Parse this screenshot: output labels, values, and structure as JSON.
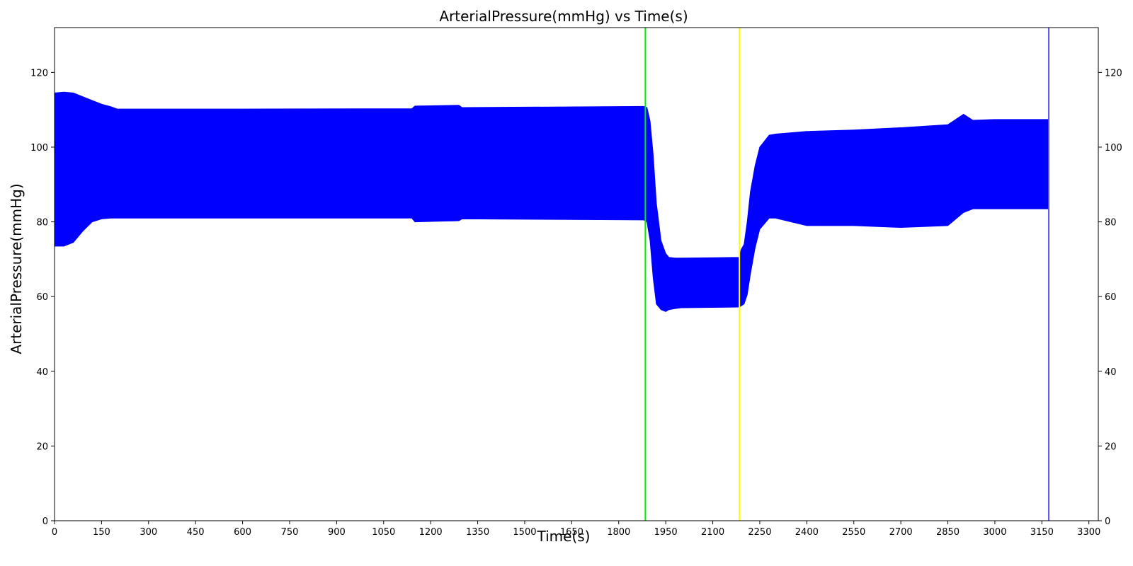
{
  "chart_data": {
    "type": "area",
    "title": "ArterialPressure(mmHg) vs Time(s)",
    "xlabel": "Time(s)",
    "ylabel": "ArterialPressure(mmHg)",
    "xlim": [
      0,
      3330
    ],
    "ylim": [
      0,
      132
    ],
    "x_ticks": [
      0,
      150,
      300,
      450,
      600,
      750,
      900,
      1050,
      1200,
      1350,
      1500,
      1650,
      1800,
      1950,
      2100,
      2250,
      2400,
      2550,
      2700,
      2850,
      3000,
      3150,
      3300
    ],
    "y_ticks": [
      0,
      20,
      40,
      60,
      80,
      100,
      120
    ],
    "y_ticks_right": true,
    "grid": false,
    "series": [
      {
        "color": "#0000ff",
        "band": {
          "x": [
            0,
            30,
            60,
            90,
            120,
            150,
            180,
            200,
            600,
            1140,
            1150,
            1290,
            1300,
            1880,
            1890,
            1900,
            1910,
            1920,
            1935,
            1950,
            1960,
            1980,
            2000,
            2100,
            2185,
            2190,
            2200,
            2210,
            2220,
            2235,
            2250,
            2280,
            2300,
            2400,
            2550,
            2700,
            2850,
            2900,
            2930,
            3000,
            3170
          ],
          "upper": [
            114.5,
            114.7,
            114.5,
            113.5,
            112.5,
            111.5,
            110.8,
            110.2,
            110.2,
            110.3,
            111.0,
            111.2,
            110.6,
            110.9,
            110.6,
            107,
            98,
            85,
            75,
            71.5,
            70.5,
            70.3,
            70.3,
            70.4,
            70.5,
            72.5,
            74,
            80,
            88,
            95,
            100,
            103.2,
            103.5,
            104.2,
            104.6,
            105.2,
            106.0,
            108.8,
            107.2,
            107.4,
            107.4
          ],
          "lower": [
            73.5,
            73.5,
            74.5,
            77.5,
            80.0,
            80.8,
            81.0,
            81.0,
            81.0,
            81.0,
            80.0,
            80.3,
            80.8,
            80.5,
            80.0,
            75,
            65,
            58,
            56.5,
            56.0,
            56.5,
            56.8,
            57.0,
            57.1,
            57.2,
            57.5,
            58,
            60.5,
            66,
            73,
            78,
            81.0,
            81.0,
            79.0,
            79.0,
            78.5,
            79.0,
            82.5,
            83.5,
            83.5,
            83.5
          ]
        }
      }
    ],
    "vertical_markers": [
      {
        "x": 1885,
        "color": "#00ee00"
      },
      {
        "x": 2185,
        "color": "#ffff00"
      },
      {
        "x": 3172,
        "color": "#5555ff"
      }
    ]
  }
}
